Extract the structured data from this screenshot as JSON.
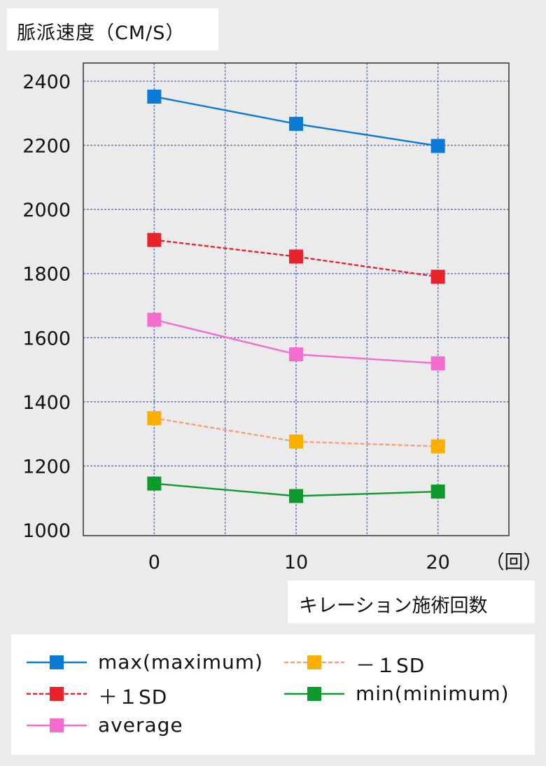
{
  "chart_data": {
    "type": "line",
    "ylabel": "脈派速度（CM/S）",
    "xlabel": "キレーション施術回数",
    "x_unit": "（回）",
    "x": [
      0,
      10,
      20
    ],
    "x_ticks": [
      "0",
      "10",
      "20"
    ],
    "xlim": [
      -5,
      25
    ],
    "ylim": [
      1000,
      2400
    ],
    "y_ticks": [
      "1000",
      "1200",
      "1400",
      "1600",
      "1800",
      "2000",
      "2200",
      "2400"
    ],
    "grid": true,
    "legend_position": "bottom",
    "series": [
      {
        "name": "max(maximum)",
        "values": [
          2352,
          2267,
          2198
        ],
        "color": "#0a7ad6",
        "dashed": false
      },
      {
        "name": "＋１SD",
        "values": [
          1905,
          1853,
          1790
        ],
        "color": "#e8232b",
        "dashed": true
      },
      {
        "name": "average",
        "values": [
          1656,
          1548,
          1520
        ],
        "color": "#f46ccd",
        "dashed": false
      },
      {
        "name": "－１SD",
        "values": [
          1349,
          1276,
          1261
        ],
        "color": "#f5a07a",
        "marker_color": "#f9ae00",
        "dashed": true
      },
      {
        "name": "min(minimum)",
        "values": [
          1145,
          1106,
          1120
        ],
        "color": "#0b9a2b",
        "dashed": false
      }
    ]
  }
}
